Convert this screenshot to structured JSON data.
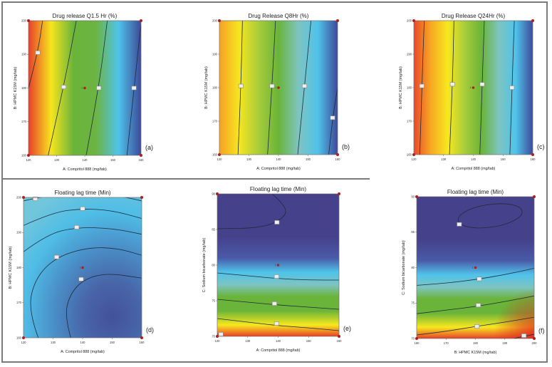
{
  "figure": {
    "description": "Six contour plots of response surfaces"
  },
  "chart_data": [
    {
      "id": "a",
      "type": "heatmap",
      "subtype": "contour",
      "title": "Drug release Q1.5 Hr  (%)",
      "panel_label": "(a)",
      "xlabel": "A: Compritol 888 (mg/tab)",
      "ylabel": "B: HPMC K15M (mg/tab)",
      "xlim": [
        120,
        160
      ],
      "ylim": [
        160,
        200
      ],
      "xticks": [
        "120",
        "130",
        "140",
        "150",
        "160"
      ],
      "yticks": [
        "160",
        "170",
        "180",
        "190",
        "200"
      ],
      "gradient": "red-left to blue-right",
      "color_stops": [
        "#e8402a",
        "#f7e51e",
        "#6ab43a",
        "#6cb443",
        "#4fc3ea",
        "#3d4a9a"
      ],
      "contours": [
        {
          "points": [
            [
              120,
              180
            ],
            [
              123.3,
              190.5
            ],
            [
              125,
              200
            ]
          ],
          "label_at": [
            123.3,
            190.5
          ]
        },
        {
          "points": [
            [
              127,
              160
            ],
            [
              132.5,
              180.3
            ],
            [
              137,
              200
            ]
          ],
          "label_at": [
            132.5,
            180.3
          ]
        },
        {
          "points": [
            [
              140.5,
              160
            ],
            [
              145,
              180
            ],
            [
              148,
              200
            ]
          ],
          "label_at": [
            145,
            180
          ]
        },
        {
          "points": [
            [
              155,
              160
            ],
            [
              157.5,
              180
            ],
            [
              160,
              199
            ]
          ],
          "label_at": [
            157.5,
            180
          ]
        }
      ],
      "center_point": {
        "x": 140,
        "y": 180,
        "label": "1"
      },
      "design_points": [
        [
          120,
          160
        ],
        [
          160,
          160
        ],
        [
          120,
          200
        ],
        [
          160,
          200
        ]
      ]
    },
    {
      "id": "b",
      "type": "heatmap",
      "subtype": "contour",
      "title": "Drug Release Q8Hr (%)",
      "panel_label": "(b)",
      "xlabel": "A: Compritol 888 (mg/tab)",
      "ylabel": "B: HPMC K15M (mg/tab)",
      "xlim": [
        120,
        160
      ],
      "ylim": [
        160,
        200
      ],
      "xticks": [
        "120",
        "130",
        "140",
        "150",
        "160"
      ],
      "yticks": [
        "160",
        "170",
        "180",
        "190",
        "200"
      ],
      "gradient": "orange-left to blue-right",
      "color_stops": [
        "#f5a023",
        "#f6e61f",
        "#a8cc3a",
        "#6ab43a",
        "#7ec4c0",
        "#4fc3ea",
        "#3d4a9a"
      ],
      "contours": [
        {
          "points": [
            [
              126.3,
              160
            ],
            [
              127.3,
              180.5
            ],
            [
              127.8,
              200
            ]
          ],
          "label_at": [
            127.3,
            180.5
          ]
        },
        {
          "points": [
            [
              136.3,
              160
            ],
            [
              137.8,
              180.5
            ],
            [
              139,
              200
            ]
          ],
          "label_at": [
            137.8,
            180.5
          ]
        },
        {
          "points": [
            [
              146.5,
              160
            ],
            [
              148.8,
              180.5
            ],
            [
              151,
              200
            ]
          ],
          "label_at": [
            148.8,
            180.5
          ]
        },
        {
          "points": [
            [
              157,
              160
            ],
            [
              158.3,
              171
            ],
            [
              160,
              180
            ]
          ],
          "label_at": [
            158.3,
            171
          ]
        }
      ],
      "center_point": {
        "x": 140,
        "y": 180,
        "label": "1"
      },
      "design_points": [
        [
          120,
          160
        ],
        [
          160,
          160
        ],
        [
          120,
          200
        ],
        [
          160,
          200
        ]
      ]
    },
    {
      "id": "c",
      "type": "heatmap",
      "subtype": "contour",
      "title": "Drug Release Q24Hr (%)",
      "panel_label": "(c)",
      "xlabel": "A: Compritol 888 (mg/tab)",
      "ylabel": "B: HPMC K15M (mg/tab)",
      "xlim": [
        120,
        160
      ],
      "ylim": [
        160,
        200
      ],
      "xticks": [
        "120",
        "130",
        "140",
        "150",
        "160"
      ],
      "yticks": [
        "160",
        "170",
        "180",
        "190",
        "200"
      ],
      "gradient": "red-left to blue-right",
      "color_stops": [
        "#e8492a",
        "#f7a823",
        "#f7e81e",
        "#a8cc3a",
        "#6ab43a",
        "#7ec4c0",
        "#4fc3ea",
        "#3d4a9a"
      ],
      "contours": [
        {
          "points": [
            [
              122,
              160
            ],
            [
              122.7,
              180.5
            ],
            [
              123.5,
              200
            ]
          ],
          "label_at": [
            122.7,
            180.5
          ]
        },
        {
          "points": [
            [
              132,
              160
            ],
            [
              133,
              181
            ],
            [
              133.5,
              200
            ]
          ],
          "label_at": [
            133,
            181
          ]
        },
        {
          "points": [
            [
              142.2,
              160
            ],
            [
              143,
              181
            ],
            [
              143.7,
              200
            ]
          ],
          "label_at": [
            143,
            181
          ]
        },
        {
          "points": [
            [
              152.3,
              160
            ],
            [
              153,
              180
            ],
            [
              153.8,
              200
            ]
          ],
          "label_at": [
            153,
            180
          ]
        }
      ],
      "center_point": {
        "x": 140,
        "y": 180,
        "label": "1"
      },
      "design_points": [
        [
          120,
          160
        ],
        [
          160,
          160
        ],
        [
          120,
          200
        ],
        [
          160,
          200
        ]
      ]
    },
    {
      "id": "d",
      "type": "heatmap",
      "subtype": "contour",
      "title": "Floating lag time (Min)",
      "panel_label": "(d)",
      "xlabel": "A: Compritol 888 (mg/tab)",
      "ylabel": "B: HPMC K15M (mg/tab)",
      "xlim": [
        120,
        160
      ],
      "ylim": [
        160,
        200
      ],
      "xticks": [
        "120",
        "130",
        "140",
        "150",
        "160"
      ],
      "yticks": [
        "160",
        "170",
        "180",
        "190",
        "200"
      ],
      "gradient": "light cyan top to dark blue bottom-right",
      "color_stops": [
        "#72c6dc",
        "#4fbde6",
        "#4a8fc8",
        "#4866a8",
        "#44519a"
      ],
      "contours": [
        {
          "points": [
            [
              120,
              199
            ],
            [
              124,
              199.8
            ],
            [
              130,
              200.5
            ],
            [
              150,
              200.5
            ],
            [
              156,
              199.8
            ],
            [
              160,
              199
            ]
          ],
          "label_at": [
            124,
            199.6
          ]
        },
        {
          "points": [
            [
              120,
              192
            ],
            [
              130,
              195.8
            ],
            [
              140,
              196.8
            ],
            [
              150,
              196.3
            ],
            [
              160,
              194
            ]
          ],
          "label_at": [
            140,
            196.8
          ]
        },
        {
          "points": [
            [
              120,
              184.5
            ],
            [
              128,
              189.5
            ],
            [
              138,
              191.5
            ],
            [
              150,
              191.2
            ],
            [
              160,
              189.5
            ]
          ],
          "label_at": [
            138,
            191.5
          ]
        },
        {
          "points": [
            [
              125,
              160
            ],
            [
              121.5,
              168
            ],
            [
              124,
              177
            ],
            [
              131,
              183
            ],
            [
              142,
              185.8
            ],
            [
              152,
              185.5
            ],
            [
              160,
              183.5
            ]
          ],
          "label_at": [
            131.2,
            183
          ]
        },
        {
          "points": [
            [
              136,
              160
            ],
            [
              134,
              166
            ],
            [
              135.5,
              172
            ],
            [
              140,
              176.5
            ],
            [
              148,
              178.5
            ],
            [
              160,
              177
            ]
          ],
          "label_at": [
            139.5,
            176.7
          ]
        }
      ],
      "center_point": {
        "x": 140,
        "y": 180,
        "label": "1"
      },
      "design_points": [
        [
          120,
          160
        ],
        [
          160,
          160
        ],
        [
          120,
          200
        ],
        [
          160,
          200
        ]
      ]
    },
    {
      "id": "e",
      "type": "heatmap",
      "subtype": "contour",
      "title": "Floating lag time (Min)",
      "panel_label": "(e)",
      "xlabel": "A: Compritol 888 (mg/tab)",
      "ylabel": "C: Sodium bicarbonate (mg/tab)",
      "xlim": [
        120,
        160
      ],
      "ylim": [
        70,
        90
      ],
      "xticks": [
        "120",
        "130",
        "140",
        "150",
        "160"
      ],
      "yticks": [
        "70",
        "75",
        "80",
        "85",
        "90"
      ],
      "gradient": "dark blue top to red bottom",
      "color_stops": [
        "#45418a",
        "#45418a",
        "#4a5aa8",
        "#4fc3ea",
        "#7ec4c0",
        "#6ab43a",
        "#6ab43a",
        "#f7e81e",
        "#e8402a"
      ],
      "contours": [
        {
          "points": [
            [
              138,
              90
            ],
            [
              143.5,
              88
            ],
            [
              141,
              86.3
            ],
            [
              134,
              85.2
            ],
            [
              120,
              85.1
            ]
          ],
          "label_at": [
            139.6,
            86
          ]
        },
        {
          "points": [
            [
              120,
              78.9
            ],
            [
              130,
              78.5
            ],
            [
              140,
              78.1
            ],
            [
              150,
              77.9
            ],
            [
              160,
              77.9
            ]
          ],
          "label_at": [
            139.5,
            78.4
          ]
        },
        {
          "points": [
            [
              120,
              75.2
            ],
            [
              130,
              74.8
            ],
            [
              140,
              74.4
            ],
            [
              150,
              74.1
            ],
            [
              160,
              73.8
            ]
          ],
          "label_at": [
            138.8,
            74.6
          ]
        },
        {
          "points": [
            [
              120,
              72.5
            ],
            [
              130,
              72
            ],
            [
              140,
              71.5
            ],
            [
              150,
              71.2
            ],
            [
              160,
              70.8
            ]
          ],
          "label_at": [
            139.5,
            71.8
          ]
        },
        {
          "points": [
            [
              120,
              70.3
            ],
            [
              121,
              70.3
            ]
          ],
          "label_at": [
            121.2,
            70.3
          ]
        }
      ],
      "center_point": {
        "x": 140,
        "y": 80,
        "label": "1"
      },
      "design_points": [
        [
          120,
          70
        ],
        [
          160,
          70
        ],
        [
          120,
          90
        ],
        [
          160,
          90
        ]
      ]
    },
    {
      "id": "f",
      "type": "heatmap",
      "subtype": "contour",
      "title": "Floating lag time (Min)",
      "panel_label": "(f)",
      "xlabel": "B: HPMC K15M (mg/tab)",
      "ylabel": "C: Sodium bicarbonate (mg/tab)",
      "xlim": [
        160,
        200
      ],
      "ylim": [
        70,
        90
      ],
      "xticks": [
        "160",
        "170",
        "180",
        "190",
        "200"
      ],
      "yticks": [
        "70",
        "75",
        "80",
        "85",
        "90"
      ],
      "gradient": "dark blue top to red bottom-right",
      "color_stops": [
        "#45418a",
        "#45418a",
        "#4a5aa8",
        "#4fc3ea",
        "#7ec4c0",
        "#6ab43a",
        "#6ab43a",
        "#f7e81e",
        "#e8402a"
      ],
      "contours": [
        {
          "ellipse": {
            "cx": 185,
            "cy": 87.3,
            "rx": 11,
            "ry": 1.6,
            "rotate_deg": -8
          },
          "label_at": [
            174.5,
            86.1
          ]
        },
        {
          "points": [
            [
              160,
              77.5
            ],
            [
              170,
              77.8
            ],
            [
              180,
              78.3
            ],
            [
              190,
              79
            ],
            [
              200,
              79.9
            ]
          ],
          "label_at": [
            181.3,
            78.4
          ]
        },
        {
          "points": [
            [
              160,
              73.5
            ],
            [
              170,
              74
            ],
            [
              180,
              74.5
            ],
            [
              190,
              75.2
            ],
            [
              200,
              76
            ]
          ],
          "label_at": [
            181,
            74.7
          ]
        },
        {
          "points": [
            [
              160,
              70.5
            ],
            [
              170,
              71
            ],
            [
              180,
              71.7
            ],
            [
              190,
              72.3
            ],
            [
              200,
              73
            ]
          ],
          "label_at": [
            180.5,
            71.7
          ]
        },
        {
          "points": [
            [
              193,
              70
            ],
            [
              200,
              70.6
            ]
          ],
          "label_at": [
            196.5,
            70.4
          ]
        }
      ],
      "center_point": {
        "x": 180,
        "y": 80,
        "label": "1"
      },
      "design_points": [
        [
          160,
          70
        ],
        [
          200,
          70
        ],
        [
          160,
          90
        ],
        [
          200,
          90
        ]
      ]
    }
  ]
}
